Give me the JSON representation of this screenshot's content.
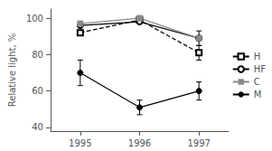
{
  "chart_data": {
    "type": "line",
    "ylabel": "Relative light, %",
    "x": [
      1995,
      1996,
      1997
    ],
    "xlim": [
      1994.5,
      1997.5
    ],
    "xticks": [
      1995,
      1996,
      1997
    ],
    "ylim": [
      38,
      105
    ],
    "yticks": [
      40,
      60,
      80,
      100
    ],
    "grid": false,
    "legend": "right",
    "series": [
      {
        "name": "H",
        "color": "black",
        "marker": "square-open",
        "line_style": "dashed",
        "values": [
          92,
          99,
          81
        ],
        "yerr": [
          0,
          0,
          4
        ]
      },
      {
        "name": "HF",
        "color": "black",
        "marker": "circle-open",
        "line_style": "solid",
        "values": [
          96,
          98,
          89
        ],
        "yerr": [
          0,
          0,
          4
        ]
      },
      {
        "name": "C",
        "color": "#888888",
        "marker": "square",
        "line_style": "solid",
        "values": [
          97,
          100,
          89
        ],
        "yerr": [
          0,
          0,
          0
        ]
      },
      {
        "name": "M",
        "color": "black",
        "marker": "circle",
        "line_style": "solid",
        "values": [
          70,
          51,
          60
        ],
        "yerr": [
          7,
          4,
          5
        ]
      }
    ]
  }
}
